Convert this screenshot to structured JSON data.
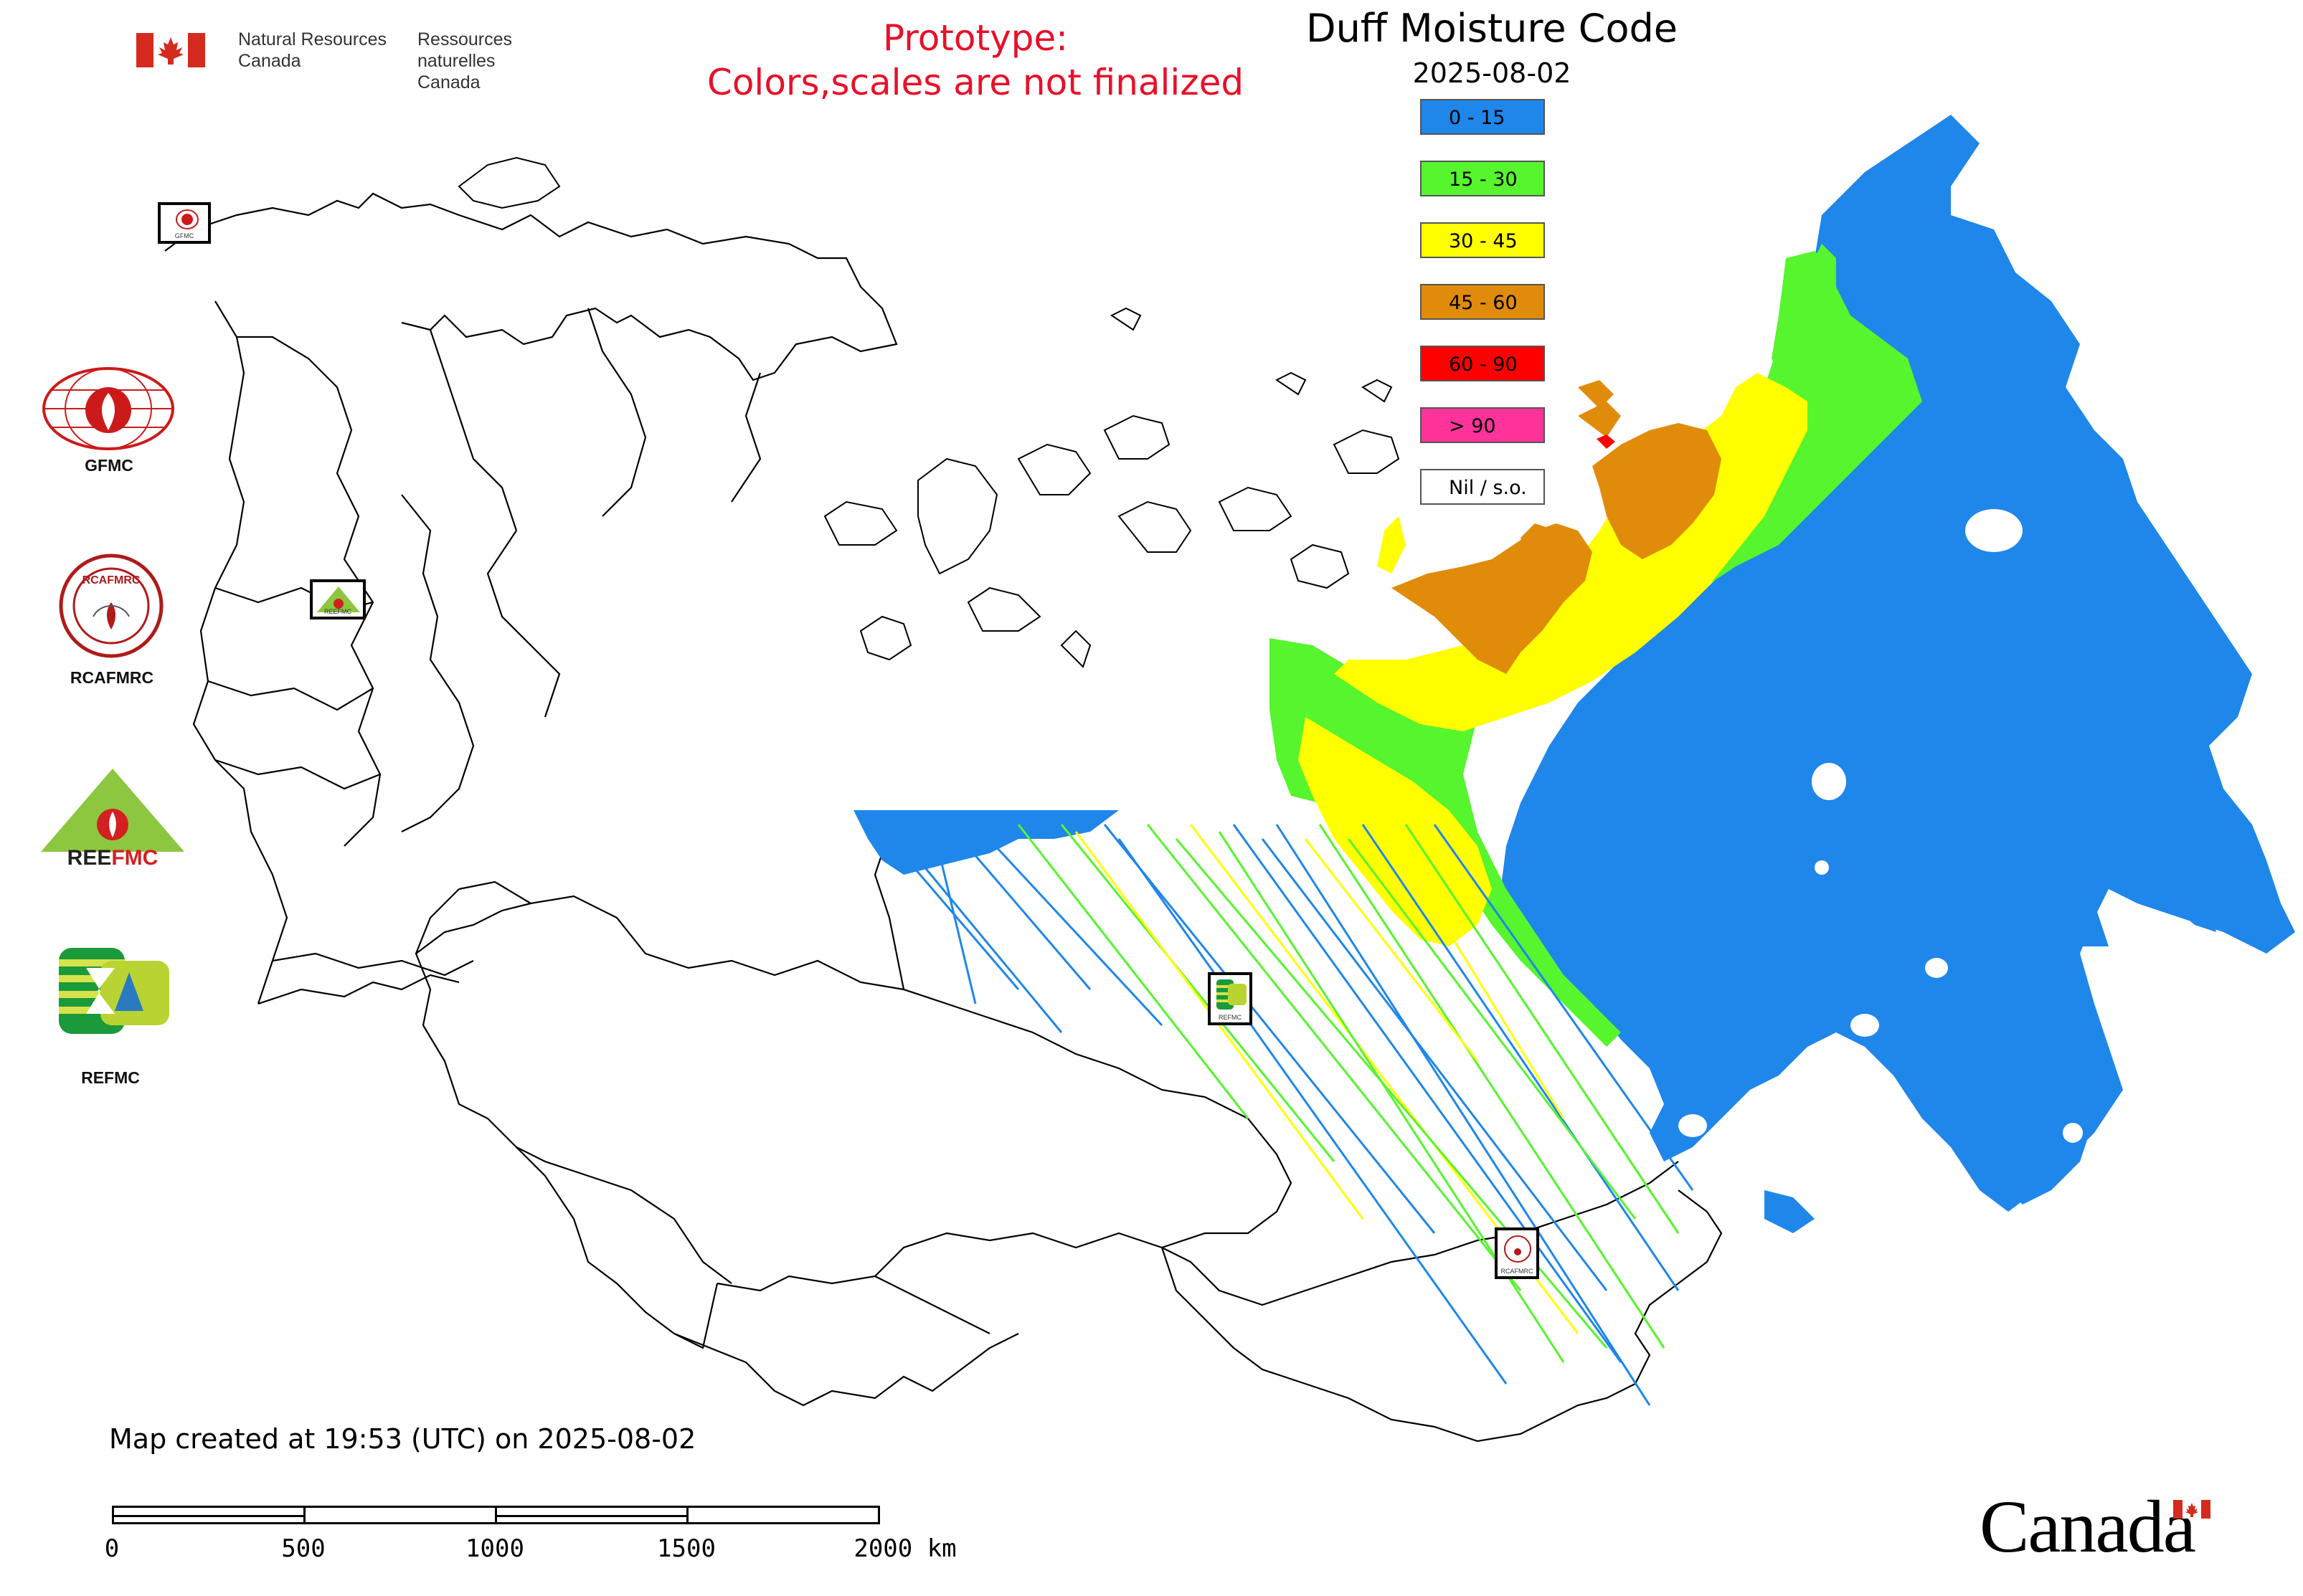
{
  "header": {
    "department_en_line1": "Natural Resources",
    "department_en_line2": "Canada",
    "department_fr_line1": "Ressources naturelles",
    "department_fr_line2": "Canada"
  },
  "prototype_notice": {
    "line1": "Prototype:",
    "line2": "Colors,scales are not finalized"
  },
  "map": {
    "title": "Duff Moisture Code",
    "date": "2025-08-02",
    "footer": "Map created at 19:53 (UTC) on 2025-08-02"
  },
  "legend": [
    {
      "label": "0 - 15",
      "color": "#1f86ea"
    },
    {
      "label": "15 - 30",
      "color": "#56f52e"
    },
    {
      "label": "30 - 45",
      "color": "#ffff00"
    },
    {
      "label": "45 - 60",
      "color": "#e08c0a"
    },
    {
      "label": "60 - 90",
      "color": "#ff0000"
    },
    {
      "label": "> 90",
      "color": "#ff3399"
    },
    {
      "label": "Nil / s.o.",
      "color": "#ffffff"
    }
  ],
  "agencies": [
    {
      "name": "GFMC",
      "logo": "gfmc-logo"
    },
    {
      "name": "RCAFMRC",
      "logo": "rcafmrc-logo"
    },
    {
      "name": "REEFMC",
      "logo": "reefmc-logo"
    },
    {
      "name": "REFMC",
      "logo": "refmc-logo"
    }
  ],
  "markers": [
    {
      "label": "GFMC"
    },
    {
      "label": "REEFMC"
    },
    {
      "label": "REFMC"
    },
    {
      "label": "RCAFMRC"
    }
  ],
  "scale": {
    "ticks": [
      "0",
      "500",
      "1000",
      "1500",
      "2000 km"
    ]
  },
  "wordmark": "Canada"
}
